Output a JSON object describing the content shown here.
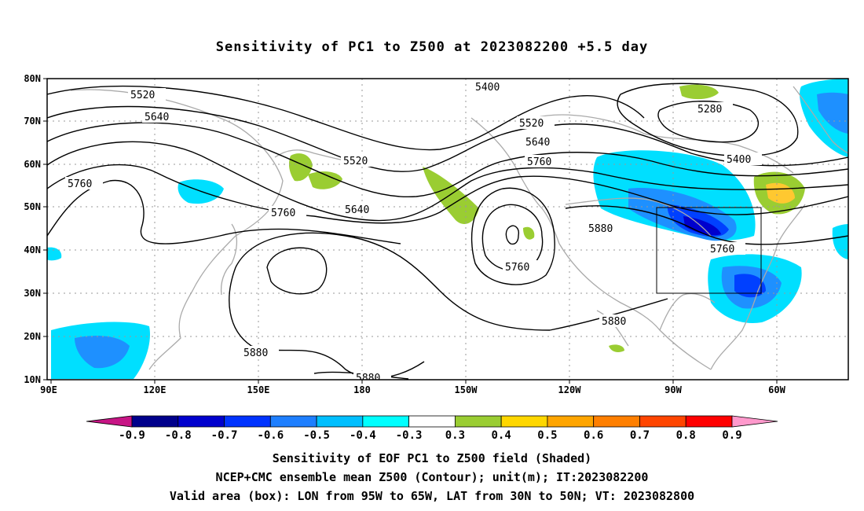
{
  "title": "Sensitivity of PC1 to Z500 at 2023082200 +5.5 day",
  "lat_labels": [
    "80N",
    "70N",
    "60N",
    "50N",
    "40N",
    "30N",
    "20N",
    "10N"
  ],
  "lon_labels": [
    "90E",
    "120E",
    "150E",
    "180",
    "150W",
    "120W",
    "90W",
    "60W"
  ],
  "contour_labels": [
    "5520",
    "5640",
    "5760",
    "5400",
    "5520",
    "5640",
    "5760",
    "5280",
    "5400",
    "5520",
    "5640",
    "5760",
    "5880",
    "5760",
    "5760",
    "5880",
    "5880",
    "5880"
  ],
  "colorbar": {
    "labels": [
      "-0.9",
      "-0.8",
      "-0.7",
      "-0.6",
      "-0.5",
      "-0.4",
      "-0.3",
      "0.3",
      "0.4",
      "0.5",
      "0.6",
      "0.7",
      "0.8",
      "0.9"
    ],
    "colors": [
      "#c71585",
      "#00008b",
      "#0000cd",
      "#0033ff",
      "#1e7fff",
      "#00bfff",
      "#00ffff",
      "#ffffff",
      "#9acd32",
      "#ffd700",
      "#ffa500",
      "#ff7f00",
      "#ff4500",
      "#ff0000",
      "#ff99cc"
    ]
  },
  "captions": [
    "Sensitivity of EOF PC1 to Z500 field (Shaded)",
    "NCEP+CMC ensemble mean Z500 (Contour); unit(m); IT:2023082200",
    "Valid area (box): LON from 95W to 65W, LAT from 30N to 50N; VT: 2023082800"
  ]
}
